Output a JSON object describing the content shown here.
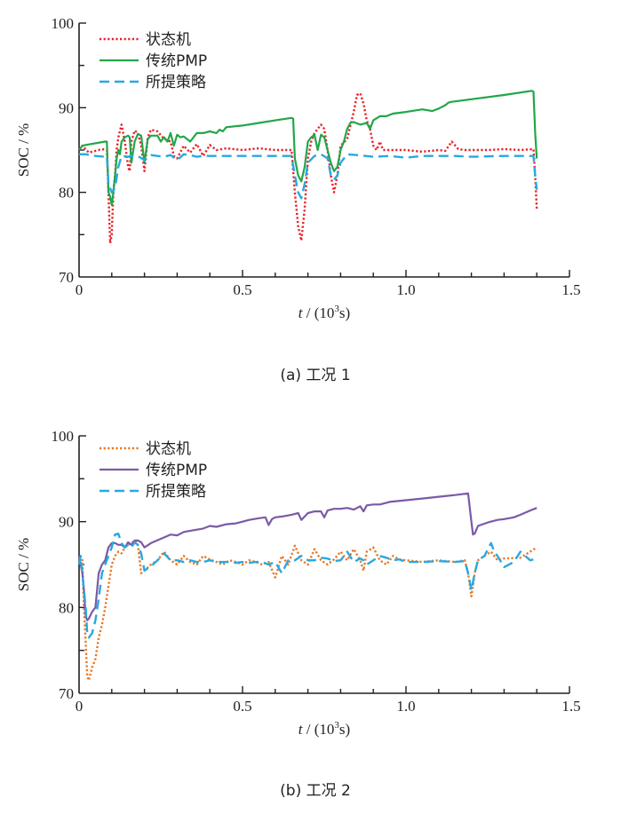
{
  "chart_data": [
    {
      "type": "line",
      "id": "a",
      "caption": "(a)  工况 1",
      "xlabel_italic": "t",
      "xlabel_rest": " / (10",
      "xlabel_sup": "3",
      "xlabel_end": "s)",
      "ylabel": "SOC / %",
      "xlim": [
        0,
        1.5
      ],
      "ylim": [
        70,
        100
      ],
      "xticks": [
        0,
        0.5,
        1.0,
        1.5
      ],
      "xtick_labels": [
        "0",
        "0.5",
        "1.0",
        "1.5"
      ],
      "xminor_step": 0.1,
      "yticks": [
        70,
        80,
        90,
        100
      ],
      "ytick_labels": [
        "70",
        "80",
        "90",
        "100"
      ],
      "yminor_step": 5,
      "grid": false,
      "legend_position": "top-left",
      "series": [
        {
          "name": "状态机",
          "color": "#e8212a",
          "style": "dotted",
          "x": [
            0,
            0.01,
            0.03,
            0.05,
            0.07,
            0.085,
            0.09,
            0.095,
            0.1,
            0.105,
            0.11,
            0.115,
            0.12,
            0.13,
            0.14,
            0.15,
            0.155,
            0.16,
            0.17,
            0.18,
            0.19,
            0.2,
            0.21,
            0.22,
            0.24,
            0.26,
            0.28,
            0.29,
            0.3,
            0.32,
            0.34,
            0.36,
            0.38,
            0.4,
            0.42,
            0.45,
            0.5,
            0.55,
            0.6,
            0.65,
            0.66,
            0.67,
            0.68,
            0.69,
            0.7,
            0.71,
            0.72,
            0.74,
            0.75,
            0.76,
            0.77,
            0.78,
            0.79,
            0.8,
            0.82,
            0.84,
            0.85,
            0.86,
            0.87,
            0.88,
            0.89,
            0.9,
            0.91,
            0.92,
            0.93,
            0.95,
            1.0,
            1.05,
            1.1,
            1.12,
            1.14,
            1.16,
            1.18,
            1.2,
            1.25,
            1.3,
            1.35,
            1.39,
            1.395,
            1.4
          ],
          "y": [
            85,
            85.5,
            84.7,
            84.9,
            85.1,
            85,
            80,
            74,
            75,
            80,
            82,
            85,
            86.5,
            88,
            86,
            83,
            82.5,
            86,
            87.3,
            87,
            85.5,
            82.5,
            86.5,
            87.4,
            87.2,
            86.3,
            86,
            84.3,
            84,
            85.5,
            84.7,
            85.7,
            84.3,
            85.6,
            85,
            85.2,
            85,
            85.2,
            85,
            85,
            80,
            76,
            74.3,
            78,
            84,
            86,
            87,
            88,
            87.5,
            85,
            82,
            80,
            82,
            85.5,
            86.3,
            89.5,
            91.5,
            91.7,
            90.5,
            88.5,
            87.5,
            85.5,
            85,
            86,
            85,
            85,
            85,
            84.8,
            85,
            84.9,
            86,
            85.1,
            85,
            85,
            85,
            85.1,
            85,
            85.1,
            82,
            78
          ]
        },
        {
          "name": "传统PMP",
          "color": "#22a64a",
          "style": "solid",
          "x": [
            0,
            0.01,
            0.02,
            0.08,
            0.085,
            0.09,
            0.095,
            0.1,
            0.105,
            0.11,
            0.115,
            0.12,
            0.125,
            0.13,
            0.14,
            0.15,
            0.155,
            0.16,
            0.17,
            0.18,
            0.19,
            0.2,
            0.21,
            0.22,
            0.24,
            0.25,
            0.26,
            0.27,
            0.28,
            0.29,
            0.3,
            0.31,
            0.32,
            0.34,
            0.36,
            0.38,
            0.4,
            0.42,
            0.43,
            0.44,
            0.45,
            0.5,
            0.55,
            0.6,
            0.65,
            0.655,
            0.66,
            0.67,
            0.68,
            0.69,
            0.7,
            0.71,
            0.72,
            0.73,
            0.74,
            0.75,
            0.76,
            0.77,
            0.78,
            0.79,
            0.8,
            0.81,
            0.82,
            0.83,
            0.84,
            0.86,
            0.88,
            0.89,
            0.9,
            0.92,
            0.94,
            0.96,
            1.0,
            1.05,
            1.08,
            1.1,
            1.12,
            1.13,
            1.14,
            1.2,
            1.3,
            1.385,
            1.39,
            1.395,
            1.4
          ],
          "y": [
            85,
            85.5,
            85.6,
            86,
            86,
            80,
            79.5,
            78.5,
            80,
            82,
            84,
            85,
            84.5,
            86,
            86.5,
            86.7,
            86.5,
            83.5,
            86,
            86.9,
            86.7,
            83.5,
            86.3,
            86.7,
            86.7,
            86,
            86.5,
            86,
            87,
            85.5,
            86.8,
            86.5,
            86.6,
            86,
            87,
            87,
            87.2,
            87,
            87.4,
            87.2,
            87.7,
            87.9,
            88.2,
            88.5,
            88.8,
            88.7,
            84,
            82,
            81.3,
            83,
            86,
            86.5,
            86.8,
            85,
            86.8,
            86.5,
            85,
            83.5,
            82.5,
            83,
            85,
            86,
            87.5,
            88.2,
            88.3,
            88,
            88.2,
            87.5,
            88.5,
            89,
            89,
            89.3,
            89.5,
            89.8,
            89.6,
            89.9,
            90.3,
            90.6,
            90.7,
            91,
            91.5,
            92,
            91.9,
            87,
            84
          ]
        },
        {
          "name": "所提策略",
          "color": "#29a8e0",
          "style": "dashed",
          "x": [
            0,
            0.02,
            0.05,
            0.08,
            0.085,
            0.09,
            0.1,
            0.11,
            0.12,
            0.13,
            0.15,
            0.16,
            0.18,
            0.2,
            0.22,
            0.24,
            0.26,
            0.28,
            0.3,
            0.32,
            0.34,
            0.36,
            0.38,
            0.4,
            0.45,
            0.5,
            0.55,
            0.6,
            0.65,
            0.66,
            0.67,
            0.68,
            0.69,
            0.7,
            0.72,
            0.74,
            0.76,
            0.77,
            0.78,
            0.79,
            0.8,
            0.82,
            0.85,
            0.9,
            0.95,
            1.0,
            1.05,
            1.1,
            1.15,
            1.2,
            1.3,
            1.39,
            1.395,
            1.4
          ],
          "y": [
            84.5,
            84.5,
            84.3,
            84.2,
            84.3,
            81,
            80,
            80.5,
            83,
            84.3,
            84.2,
            84.3,
            84.3,
            83.8,
            84.4,
            84.3,
            84.2,
            84.4,
            83.8,
            84.5,
            84.4,
            84.2,
            84.3,
            84.3,
            84.3,
            84.3,
            84.3,
            84.3,
            84.3,
            82,
            80,
            79.3,
            81,
            83.5,
            84.3,
            84.5,
            84,
            82,
            81.5,
            82,
            83.5,
            84.5,
            84.4,
            84.2,
            84.3,
            84.1,
            84.3,
            84.3,
            84.3,
            84.2,
            84.3,
            84.3,
            82,
            80.3
          ]
        }
      ]
    },
    {
      "type": "line",
      "id": "b",
      "caption": "(b)  工况 2",
      "xlabel_italic": "t",
      "xlabel_rest": " / (10",
      "xlabel_sup": "3",
      "xlabel_end": "s)",
      "ylabel": "SOC / %",
      "xlim": [
        0,
        1.5
      ],
      "ylim": [
        70,
        100
      ],
      "xticks": [
        0,
        0.5,
        1.0,
        1.5
      ],
      "xtick_labels": [
        "0",
        "0.5",
        "1.0",
        "1.5"
      ],
      "xminor_step": 0.1,
      "yticks": [
        70,
        80,
        90,
        100
      ],
      "ytick_labels": [
        "70",
        "80",
        "90",
        "100"
      ],
      "yminor_step": 5,
      "grid": false,
      "legend_position": "top-left",
      "series": [
        {
          "name": "状态机",
          "color": "#e87722",
          "style": "dotted",
          "x": [
            0,
            0.005,
            0.01,
            0.015,
            0.02,
            0.025,
            0.03,
            0.04,
            0.05,
            0.06,
            0.07,
            0.08,
            0.09,
            0.1,
            0.11,
            0.12,
            0.13,
            0.14,
            0.15,
            0.16,
            0.17,
            0.18,
            0.19,
            0.2,
            0.22,
            0.24,
            0.26,
            0.28,
            0.3,
            0.32,
            0.34,
            0.36,
            0.38,
            0.4,
            0.42,
            0.44,
            0.46,
            0.48,
            0.5,
            0.52,
            0.54,
            0.56,
            0.58,
            0.6,
            0.62,
            0.64,
            0.66,
            0.68,
            0.7,
            0.72,
            0.74,
            0.76,
            0.78,
            0.8,
            0.82,
            0.84,
            0.86,
            0.87,
            0.88,
            0.9,
            0.92,
            0.94,
            0.96,
            0.98,
            1.0,
            1.05,
            1.1,
            1.15,
            1.18,
            1.19,
            1.2,
            1.21,
            1.22,
            1.24,
            1.26,
            1.28,
            1.3,
            1.35,
            1.38,
            1.4
          ],
          "y": [
            85,
            86,
            85.5,
            80,
            76,
            72,
            71.5,
            73,
            74,
            76.5,
            78,
            80,
            82.5,
            85,
            86,
            86.5,
            86.3,
            87,
            87.3,
            87.5,
            87.8,
            87.3,
            84,
            84.3,
            85,
            85.5,
            86.5,
            85.5,
            85,
            86,
            85.3,
            85,
            86,
            85.6,
            85.3,
            85,
            85.5,
            85.3,
            85,
            85.5,
            85.3,
            85,
            85.3,
            83.5,
            86,
            85,
            87.2,
            85.5,
            85,
            86.8,
            85.5,
            85,
            85.6,
            86.5,
            85.5,
            86.8,
            85.5,
            84.3,
            86.5,
            87,
            85.5,
            85,
            86,
            85.6,
            85.5,
            85.3,
            85.5,
            85.3,
            85.5,
            84,
            81.3,
            84,
            85.5,
            86,
            86.5,
            85.5,
            85.7,
            85.8,
            86.5,
            87
          ]
        },
        {
          "name": "传统PMP",
          "color": "#7b5aa6",
          "style": "solid",
          "x": [
            0,
            0.005,
            0.01,
            0.015,
            0.02,
            0.025,
            0.03,
            0.04,
            0.05,
            0.06,
            0.07,
            0.08,
            0.09,
            0.1,
            0.11,
            0.12,
            0.13,
            0.14,
            0.15,
            0.16,
            0.17,
            0.18,
            0.19,
            0.2,
            0.22,
            0.25,
            0.28,
            0.3,
            0.32,
            0.35,
            0.38,
            0.4,
            0.42,
            0.45,
            0.48,
            0.5,
            0.52,
            0.55,
            0.57,
            0.58,
            0.59,
            0.6,
            0.62,
            0.65,
            0.67,
            0.68,
            0.7,
            0.72,
            0.74,
            0.75,
            0.76,
            0.78,
            0.8,
            0.82,
            0.84,
            0.86,
            0.87,
            0.88,
            0.9,
            0.92,
            0.95,
            1.0,
            1.05,
            1.1,
            1.15,
            1.19,
            1.2,
            1.205,
            1.21,
            1.22,
            1.25,
            1.28,
            1.3,
            1.33,
            1.35,
            1.38,
            1.4
          ],
          "y": [
            86,
            85,
            84,
            82,
            79,
            78.5,
            78.7,
            79.5,
            80,
            84,
            85,
            85.5,
            87,
            87.5,
            87.5,
            87.3,
            87.3,
            87,
            87.6,
            87.3,
            87.8,
            87.8,
            87.6,
            87,
            87.5,
            88,
            88.5,
            88.4,
            88.8,
            89,
            89.2,
            89.5,
            89.4,
            89.7,
            89.8,
            90,
            90.2,
            90.4,
            90.5,
            89.6,
            90.3,
            90.5,
            90.6,
            90.8,
            91,
            90.2,
            91,
            91.2,
            91.2,
            90.5,
            91.3,
            91.5,
            91.5,
            91.6,
            91.4,
            91.8,
            91.2,
            91.9,
            92,
            92,
            92.3,
            92.5,
            92.7,
            92.9,
            93.1,
            93.3,
            90,
            88.5,
            88.6,
            89.5,
            89.9,
            90.2,
            90.3,
            90.5,
            90.8,
            91.3,
            91.6
          ]
        },
        {
          "name": "所提策略",
          "color": "#29a8e0",
          "style": "dashed",
          "x": [
            0,
            0.005,
            0.01,
            0.02,
            0.025,
            0.03,
            0.04,
            0.05,
            0.06,
            0.07,
            0.08,
            0.09,
            0.1,
            0.11,
            0.12,
            0.13,
            0.14,
            0.15,
            0.16,
            0.17,
            0.18,
            0.19,
            0.2,
            0.22,
            0.24,
            0.26,
            0.28,
            0.3,
            0.32,
            0.34,
            0.36,
            0.38,
            0.4,
            0.42,
            0.44,
            0.46,
            0.48,
            0.5,
            0.52,
            0.54,
            0.56,
            0.58,
            0.6,
            0.62,
            0.64,
            0.66,
            0.68,
            0.7,
            0.72,
            0.74,
            0.76,
            0.78,
            0.8,
            0.82,
            0.84,
            0.86,
            0.87,
            0.88,
            0.9,
            0.92,
            0.94,
            0.96,
            0.98,
            1.0,
            1.05,
            1.1,
            1.15,
            1.18,
            1.19,
            1.2,
            1.21,
            1.22,
            1.24,
            1.26,
            1.27,
            1.28,
            1.3,
            1.33,
            1.35,
            1.38,
            1.4
          ],
          "y": [
            85,
            86,
            84,
            80,
            77,
            76.5,
            77,
            78.5,
            81,
            84,
            85,
            86,
            87,
            88.5,
            88.6,
            87.5,
            87,
            87.3,
            87,
            87.6,
            87.3,
            86.3,
            84.3,
            84.8,
            85.5,
            86.3,
            85.5,
            85.5,
            85.3,
            85.5,
            85.3,
            85.3,
            85.5,
            85.3,
            85.3,
            85.3,
            85.2,
            85.3,
            85.2,
            85.3,
            85.3,
            85,
            85.3,
            84,
            85.5,
            85.5,
            86,
            85.5,
            85.5,
            85.8,
            85.7,
            85.4,
            85.5,
            86.5,
            85.3,
            85.7,
            85.5,
            85,
            85.5,
            86,
            85.8,
            85.5,
            85.6,
            85.3,
            85.3,
            85.4,
            85.3,
            85.4,
            84,
            82,
            84,
            85.5,
            86,
            87.5,
            86.5,
            86,
            84.7,
            85.3,
            86.5,
            85.5,
            85.7
          ]
        }
      ]
    }
  ]
}
